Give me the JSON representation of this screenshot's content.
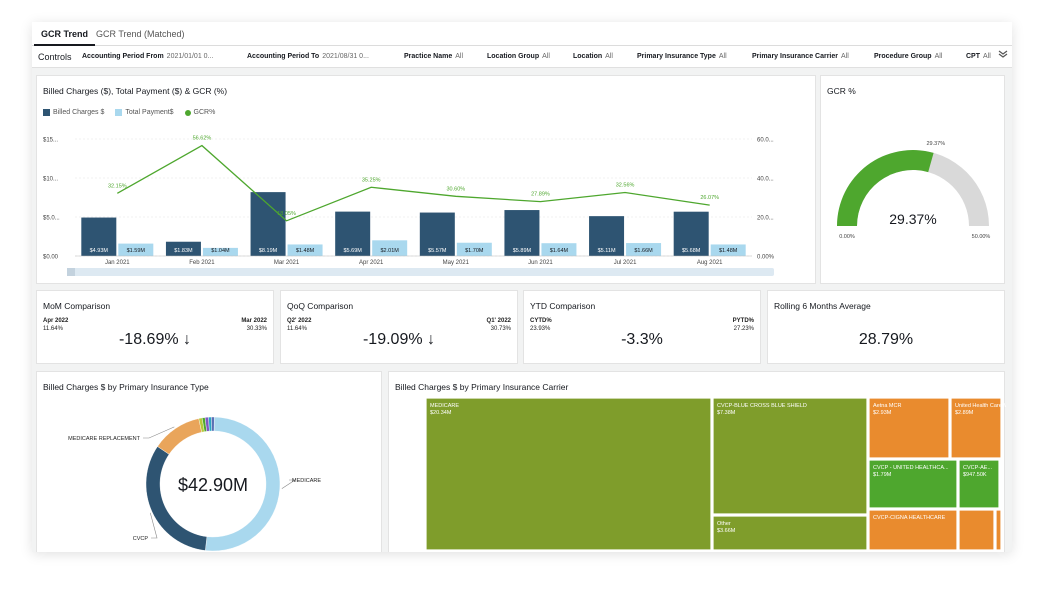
{
  "tabs": [
    {
      "label": "GCR Trend",
      "active": true
    },
    {
      "label": "GCR Trend (Matched)",
      "active": false
    }
  ],
  "controls": {
    "title": "Controls",
    "filters": [
      {
        "label": "Accounting Period From",
        "value": "2021/01/01 0..."
      },
      {
        "label": "Accounting Period To",
        "value": "2021/08/31 0..."
      },
      {
        "label": "Practice Name",
        "value": "All"
      },
      {
        "label": "Location Group",
        "value": "All"
      },
      {
        "label": "Location",
        "value": "All"
      },
      {
        "label": "Primary Insurance Type",
        "value": "All"
      },
      {
        "label": "Primary Insurance Carrier",
        "value": "All"
      },
      {
        "label": "Procedure Group",
        "value": "All"
      },
      {
        "label": "CPT",
        "value": "All"
      }
    ],
    "expand_icon": "double-chevron-down-icon"
  },
  "trend": {
    "title": "Billed Charges ($), Total Payment ($) & GCR (%)",
    "legend": [
      {
        "label": "Billed Charges $",
        "color": "#2e5472"
      },
      {
        "label": "Total Payment$",
        "color": "#a9d8ee"
      },
      {
        "label": "GCR%",
        "color": "#4ea72e"
      }
    ]
  },
  "chart_data": [
    {
      "type": "bar",
      "title": "Billed Charges ($), Total Payment ($) & GCR (%)",
      "categories": [
        "Jan 2021",
        "Feb 2021",
        "Mar 2021",
        "Apr 2021",
        "May 2021",
        "Jun 2021",
        "Jul 2021",
        "Aug 2021"
      ],
      "y_ticks": [
        "$15...",
        "$10...",
        "$5.0...",
        "$0.00"
      ],
      "y2_ticks": [
        "60.0...",
        "40.0...",
        "20.0...",
        "0.00%"
      ],
      "ylim": [
        0,
        15000000
      ],
      "y2lim": [
        0,
        60
      ],
      "series": [
        {
          "name": "Billed Charges $",
          "type": "bar",
          "color": "#2e5472",
          "values": [
            4930000,
            1830000,
            8190000,
            5690000,
            5570000,
            5890000,
            5110000,
            5680000
          ],
          "labels": [
            "$4.93M",
            "$1.83M",
            "$8.19M",
            "$5.69M",
            "$5.57M",
            "$5.89M",
            "$5.11M",
            "$5.68M"
          ]
        },
        {
          "name": "Total Payment$",
          "type": "bar",
          "color": "#a9d8ee",
          "values": [
            1590000,
            1040000,
            1480000,
            2010000,
            1700000,
            1640000,
            1660000,
            1480000
          ],
          "labels": [
            "$1.59M",
            "$1.04M",
            "$1.48M",
            "$2.01M",
            "$1.70M",
            "$1.64M",
            "$1.66M",
            "$1.48M"
          ]
        },
        {
          "name": "GCR%",
          "type": "line",
          "color": "#4ea72e",
          "values": [
            32.15,
            56.62,
            18.05,
            35.25,
            30.6,
            27.89,
            32.56,
            26.07
          ],
          "labels": [
            "32.15%",
            "56.62%",
            "18.05%",
            "35.25%",
            "30.60%",
            "27.89%",
            "32.56%",
            "26.07%"
          ]
        }
      ]
    },
    {
      "type": "gauge",
      "title": "GCR %",
      "value": 29.37,
      "target": 29.37,
      "min": 0,
      "max": 50,
      "value_label": "29.37%",
      "min_label": "0.00%",
      "max_label": "50.00%",
      "target_label": "29.37%",
      "colors": {
        "fill": "#4ea72e",
        "track": "#d9d9d9"
      }
    },
    {
      "type": "pie",
      "title": "Billed Charges $ by Primary Insurance Type",
      "center_label": "$42.90M",
      "slices": [
        {
          "label": "MEDICARE",
          "value": 22.1,
          "color": "#a9d8ee"
        },
        {
          "label": "CVCP",
          "value": 14.0,
          "color": "#2e5472"
        },
        {
          "label": "MEDICARE REPLACEMENT",
          "value": 5.2,
          "color": "#e9a55b"
        },
        {
          "label": "",
          "value": 0.35,
          "color": "#b5c93a"
        },
        {
          "label": "",
          "value": 0.3,
          "color": "#4ea72e"
        },
        {
          "label": "",
          "value": 0.35,
          "color": "#7e57c2"
        },
        {
          "label": "",
          "value": 0.3,
          "color": "#2aa6c4"
        },
        {
          "label": "",
          "value": 0.3,
          "color": "#5b6fb5"
        }
      ]
    },
    {
      "type": "treemap",
      "title": "Billed Charges $ by Primary Insurance Carrier",
      "cells": [
        {
          "label": "MEDICARE",
          "value": "$20.34M",
          "color": "#7f9d2b"
        },
        {
          "label": "CVCP-BLUE CROSS BLUE SHIELD",
          "value": "$7.38M",
          "color": "#7f9d2b"
        },
        {
          "label": "Other",
          "value": "$3.66M",
          "color": "#7f9d2b"
        },
        {
          "label": "Aetna MCR",
          "value": "$2.93M",
          "color": "#e98b2e"
        },
        {
          "label": "United Health Care Me...",
          "value": "$2.89M",
          "color": "#e98b2e"
        },
        {
          "label": "CVCP - UNITED HEALTHCA...",
          "value": "$1.79M",
          "color": "#4ea72e"
        },
        {
          "label": "CVCP-AE...",
          "value": "$947.50K",
          "color": "#4ea72e"
        },
        {
          "label": "",
          "value": "",
          "color": "#7f9d2b"
        },
        {
          "label": "CVCP-CIGNA HEALTHCARE",
          "value": "",
          "color": "#e98b2e"
        },
        {
          "label": "",
          "value": "",
          "color": "#e98b2e"
        },
        {
          "label": "",
          "value": "",
          "color": "#e98b2e"
        }
      ]
    }
  ],
  "kpis": [
    {
      "title": "MoM Comparison",
      "left_label": "Apr 2022",
      "left_value": "11.64%",
      "right_label": "Mar 2022",
      "right_value": "30.33%",
      "delta": "-18.69% ↓"
    },
    {
      "title": "QoQ Comparison",
      "left_label": "Q2' 2022",
      "left_value": "11.64%",
      "right_label": "Q1' 2022",
      "right_value": "30.73%",
      "delta": "-19.09% ↓"
    },
    {
      "title": "YTD Comparison",
      "left_label": "CYTD%",
      "left_value": "23.93%",
      "right_label": "PYTD%",
      "right_value": "27.23%",
      "delta": "-3.3%"
    },
    {
      "title": "Rolling 6 Months Average",
      "delta": "28.79%"
    }
  ]
}
